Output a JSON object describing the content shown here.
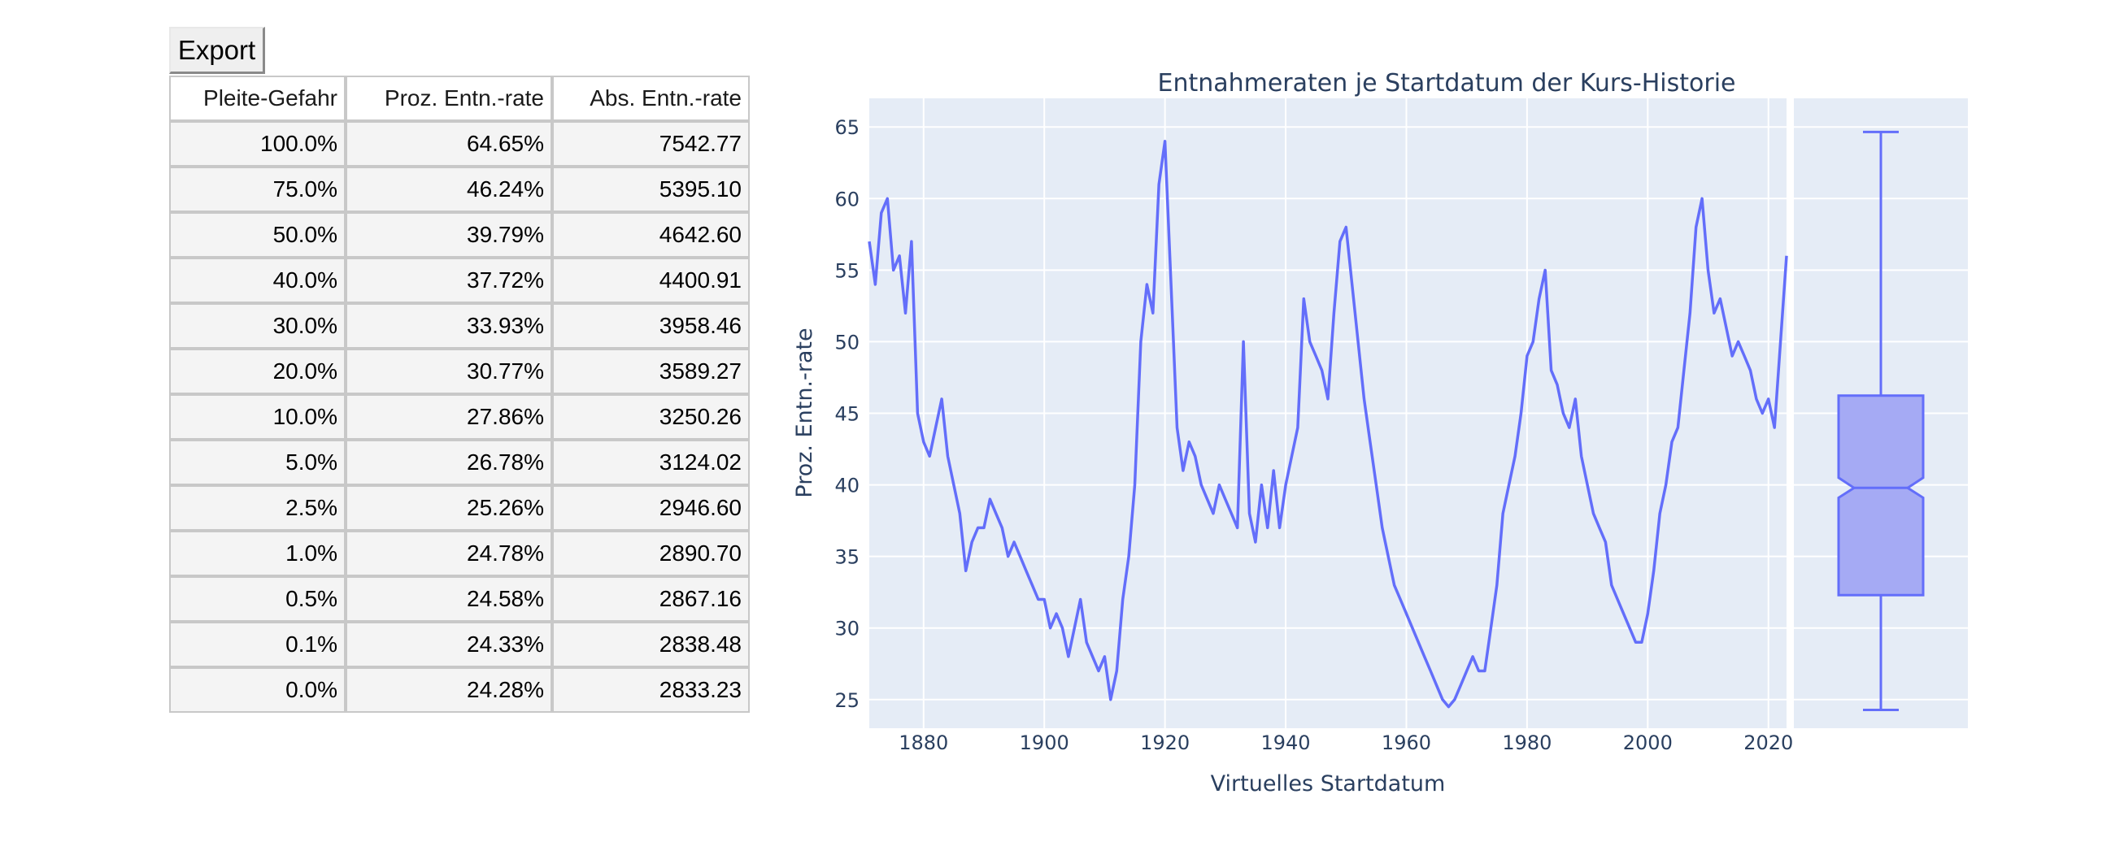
{
  "export_button": {
    "label": "Export"
  },
  "table": {
    "headers": [
      "Pleite-Gefahr",
      "Proz. Entn.-rate",
      "Abs. Entn.-rate"
    ],
    "rows": [
      [
        "100.0%",
        "64.65%",
        "7542.77"
      ],
      [
        "75.0%",
        "46.24%",
        "5395.10"
      ],
      [
        "50.0%",
        "39.79%",
        "4642.60"
      ],
      [
        "40.0%",
        "37.72%",
        "4400.91"
      ],
      [
        "30.0%",
        "33.93%",
        "3958.46"
      ],
      [
        "20.0%",
        "30.77%",
        "3589.27"
      ],
      [
        "10.0%",
        "27.86%",
        "3250.26"
      ],
      [
        "5.0%",
        "26.78%",
        "3124.02"
      ],
      [
        "2.5%",
        "25.26%",
        "2946.60"
      ],
      [
        "1.0%",
        "24.78%",
        "2890.70"
      ],
      [
        "0.5%",
        "24.58%",
        "2867.16"
      ],
      [
        "0.1%",
        "24.33%",
        "2838.48"
      ],
      [
        "0.0%",
        "24.28%",
        "2833.23"
      ]
    ]
  },
  "chart_data": {
    "type": "line",
    "title": "Entnahmeraten je Startdatum der Kurs-Historie",
    "xlabel": "Virtuelles Startdatum",
    "ylabel": "Proz. Entn.-rate",
    "xlim": [
      1871,
      2023
    ],
    "ylim": [
      23,
      67
    ],
    "xticks": [
      1880,
      1900,
      1920,
      1940,
      1960,
      1980,
      2000,
      2020
    ],
    "yticks": [
      25,
      30,
      35,
      40,
      45,
      50,
      55,
      60,
      65
    ],
    "grid": true,
    "line_color": "#636efa",
    "series": [
      {
        "name": "Proz. Entn.-rate",
        "x": [
          1871,
          1872,
          1873,
          1874,
          1875,
          1876,
          1877,
          1878,
          1879,
          1880,
          1881,
          1882,
          1883,
          1884,
          1885,
          1886,
          1887,
          1888,
          1889,
          1890,
          1891,
          1892,
          1893,
          1894,
          1895,
          1896,
          1897,
          1898,
          1899,
          1900,
          1901,
          1902,
          1903,
          1904,
          1905,
          1906,
          1907,
          1908,
          1909,
          1910,
          1911,
          1912,
          1913,
          1914,
          1915,
          1916,
          1917,
          1918,
          1919,
          1920,
          1921,
          1922,
          1923,
          1924,
          1925,
          1926,
          1927,
          1928,
          1929,
          1930,
          1931,
          1932,
          1933,
          1934,
          1935,
          1936,
          1937,
          1938,
          1939,
          1940,
          1941,
          1942,
          1943,
          1944,
          1945,
          1946,
          1947,
          1948,
          1949,
          1950,
          1951,
          1952,
          1953,
          1954,
          1955,
          1956,
          1957,
          1958,
          1959,
          1960,
          1961,
          1962,
          1963,
          1964,
          1965,
          1966,
          1967,
          1968,
          1969,
          1970,
          1971,
          1972,
          1973,
          1974,
          1975,
          1976,
          1977,
          1978,
          1979,
          1980,
          1981,
          1982,
          1983,
          1984,
          1985,
          1986,
          1987,
          1988,
          1989,
          1990,
          1991,
          1992,
          1993,
          1994,
          1995,
          1996,
          1997,
          1998,
          1999,
          2000,
          2001,
          2002,
          2003,
          2004,
          2005,
          2006,
          2007,
          2008,
          2009,
          2010,
          2011,
          2012,
          2013,
          2014,
          2015,
          2016,
          2017,
          2018,
          2019,
          2020,
          2021,
          2022,
          2023
        ],
        "y": [
          57,
          54,
          59,
          60,
          55,
          56,
          52,
          57,
          45,
          43,
          42,
          44,
          46,
          42,
          40,
          38,
          34,
          36,
          37,
          37,
          39,
          38,
          37,
          35,
          36,
          35,
          34,
          33,
          32,
          32,
          30,
          31,
          30,
          28,
          30,
          32,
          29,
          28,
          27,
          28,
          25,
          27,
          32,
          35,
          40,
          50,
          54,
          52,
          61,
          64,
          54,
          44,
          41,
          43,
          42,
          40,
          39,
          38,
          40,
          39,
          38,
          37,
          50,
          38,
          36,
          40,
          37,
          41,
          37,
          40,
          42,
          44,
          53,
          50,
          49,
          48,
          46,
          52,
          57,
          58,
          54,
          50,
          46,
          43,
          40,
          37,
          35,
          33,
          32,
          31,
          30,
          29,
          28,
          27,
          26,
          25,
          24.5,
          25,
          26,
          27,
          28,
          27,
          27,
          30,
          33,
          38,
          40,
          42,
          45,
          49,
          50,
          53,
          55,
          48,
          47,
          45,
          44,
          46,
          42,
          40,
          38,
          37,
          36,
          33,
          32,
          31,
          30,
          29,
          29,
          31,
          34,
          38,
          40,
          43,
          44,
          48,
          52,
          58,
          60,
          55,
          52,
          53,
          51,
          49,
          50,
          49,
          48,
          46,
          45,
          46,
          44,
          50,
          56
        ]
      }
    ],
    "box": {
      "min": 24.28,
      "q1": 32.3,
      "median": 39.79,
      "q3": 46.24,
      "max": 64.65,
      "notch_low": 39.1,
      "notch_high": 40.5,
      "fill_color": "#a5aaf4",
      "line_color": "#636efa"
    }
  }
}
